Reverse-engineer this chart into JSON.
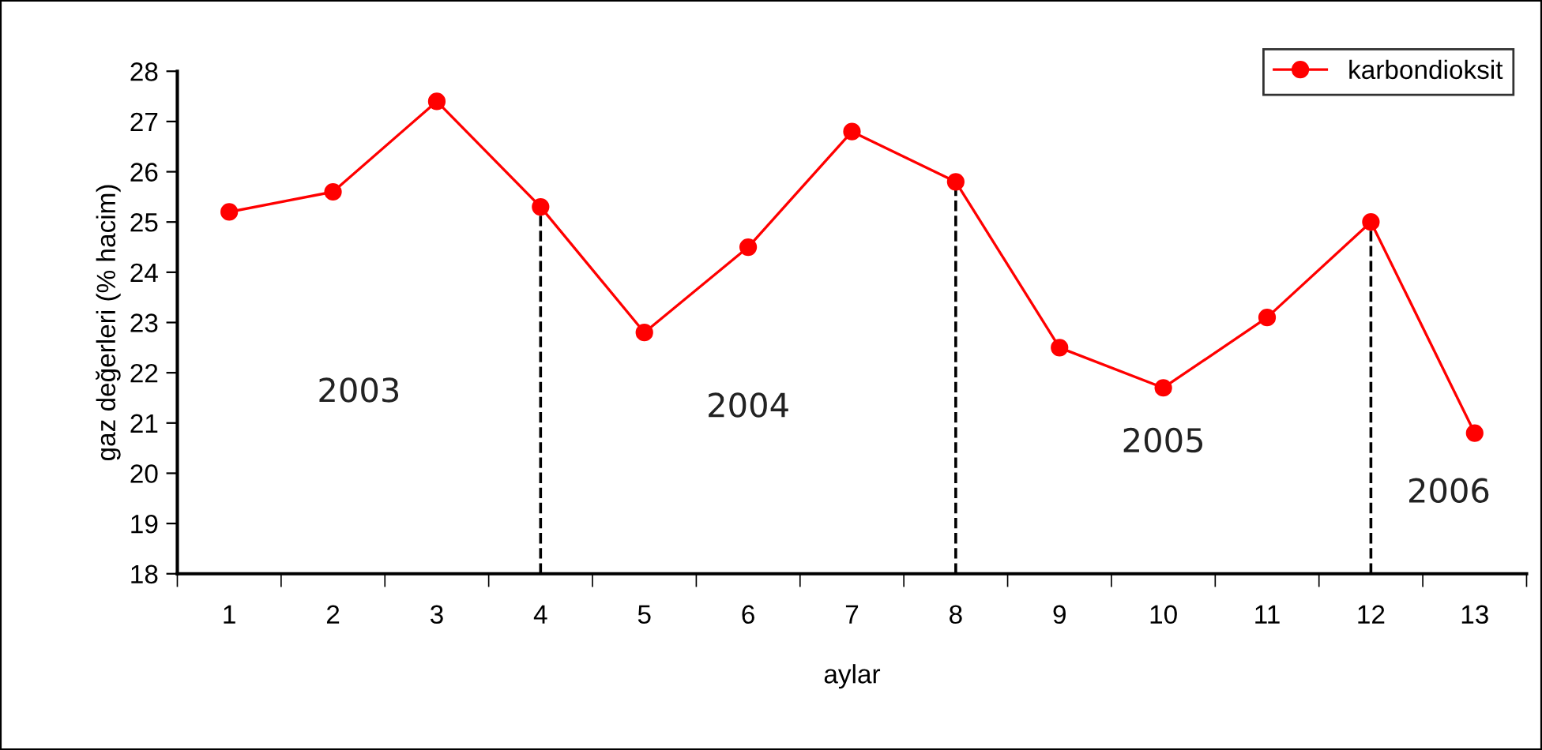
{
  "chart_data": {
    "type": "line",
    "xlabel": "aylar",
    "ylabel": "gaz değerleri (% hacim)",
    "categories": [
      "1",
      "2",
      "3",
      "4",
      "5",
      "6",
      "7",
      "8",
      "9",
      "10",
      "11",
      "12",
      "13"
    ],
    "series": [
      {
        "name": "karbondioksit",
        "color": "#ff0000",
        "values": [
          25.2,
          25.6,
          27.4,
          25.3,
          22.8,
          24.5,
          26.8,
          25.8,
          22.5,
          21.7,
          23.1,
          25.0,
          20.8
        ]
      }
    ],
    "ylim": [
      18,
      28
    ],
    "yticks": [
      18,
      19,
      20,
      21,
      22,
      23,
      24,
      25,
      26,
      27,
      28
    ],
    "ref_lines": [
      {
        "axis": "x",
        "value": "4",
        "color": "#000000",
        "line_style": "dashed"
      },
      {
        "axis": "x",
        "value": "8",
        "color": "#000000",
        "line_style": "dashed"
      },
      {
        "axis": "x",
        "value": "12",
        "color": "#000000",
        "line_style": "dashed"
      }
    ],
    "annotations": [
      "2003",
      "2004",
      "2005",
      "2006"
    ],
    "marker": "circle",
    "line_style": "solid",
    "grid": false,
    "legend": "top right"
  }
}
